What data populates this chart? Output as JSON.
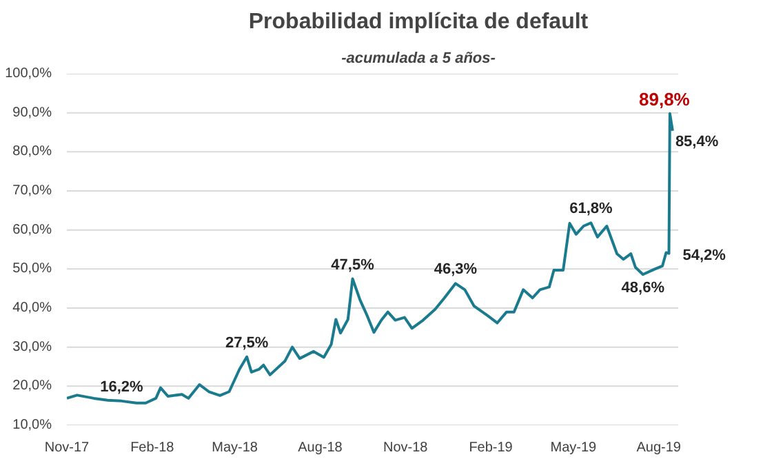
{
  "chart_data": {
    "type": "line",
    "title": "Probabilidad implícita de default",
    "subtitle": "-acumulada a 5 años-",
    "x": [
      "2017-11-01",
      "2017-11-12",
      "2017-11-30",
      "2017-12-15",
      "2017-12-30",
      "2018-01-15",
      "2018-01-25",
      "2018-02-05",
      "2018-02-10",
      "2018-02-18",
      "2018-03-05",
      "2018-03-12",
      "2018-03-24",
      "2018-04-03",
      "2018-04-15",
      "2018-04-25",
      "2018-05-06",
      "2018-05-14",
      "2018-05-19",
      "2018-05-27",
      "2018-06-01",
      "2018-06-08",
      "2018-06-24",
      "2018-07-02",
      "2018-07-10",
      "2018-07-25",
      "2018-08-05",
      "2018-08-13",
      "2018-08-18",
      "2018-08-23",
      "2018-08-31",
      "2018-09-05",
      "2018-09-13",
      "2018-09-21",
      "2018-09-28",
      "2018-10-06",
      "2018-10-13",
      "2018-10-21",
      "2018-10-31",
      "2018-11-08",
      "2018-11-20",
      "2018-12-03",
      "2018-12-13",
      "2018-12-25",
      "2019-01-04",
      "2019-01-14",
      "2019-01-29",
      "2019-02-08",
      "2019-02-18",
      "2019-02-26",
      "2019-03-08",
      "2019-03-18",
      "2019-03-26",
      "2019-04-05",
      "2019-04-10",
      "2019-04-20",
      "2019-04-27",
      "2019-05-04",
      "2019-05-12",
      "2019-05-20",
      "2019-05-27",
      "2019-06-06",
      "2019-06-17",
      "2019-06-24",
      "2019-07-02",
      "2019-07-07",
      "2019-07-15",
      "2019-07-27",
      "2019-08-05",
      "2019-08-09",
      "2019-08-12",
      "2019-08-13",
      "2019-08-16"
    ],
    "series": [
      {
        "color": "#1b7b8e",
        "values": [
          16.9,
          17.7,
          16.9,
          16.4,
          16.2,
          15.7,
          15.7,
          16.9,
          19.6,
          17.4,
          17.9,
          16.9,
          20.4,
          18.6,
          17.6,
          18.6,
          24.3,
          27.5,
          23.6,
          24.3,
          25.4,
          22.9,
          26.4,
          30.0,
          27.1,
          28.9,
          27.4,
          30.7,
          37.1,
          33.6,
          37.1,
          47.5,
          42.1,
          37.9,
          33.8,
          36.9,
          39.0,
          36.9,
          37.6,
          34.8,
          36.9,
          39.7,
          42.6,
          46.3,
          44.7,
          40.5,
          38.0,
          36.2,
          39.0,
          39.0,
          44.7,
          42.6,
          44.7,
          45.4,
          49.7,
          49.7,
          61.7,
          58.9,
          61.0,
          61.8,
          58.2,
          61.0,
          53.9,
          52.5,
          53.9,
          50.4,
          48.6,
          49.9,
          50.8,
          54.2,
          54.0,
          89.8,
          85.4
        ]
      }
    ],
    "xlim": [
      "2017-11-01",
      "2019-08-22"
    ],
    "xticks": [
      {
        "value": "2017-11-01",
        "label": "Nov-17"
      },
      {
        "value": "2018-02-01",
        "label": "Feb-18"
      },
      {
        "value": "2018-05-01",
        "label": "May-18"
      },
      {
        "value": "2018-08-01",
        "label": "Aug-18"
      },
      {
        "value": "2018-11-01",
        "label": "Nov-18"
      },
      {
        "value": "2019-02-01",
        "label": "Feb-19"
      },
      {
        "value": "2019-05-01",
        "label": "May-19"
      },
      {
        "value": "2019-08-01",
        "label": "Aug-19"
      }
    ],
    "ylim": [
      10,
      100
    ],
    "yticks": [
      {
        "value": 10,
        "label": "10,0%"
      },
      {
        "value": 20,
        "label": "20,0%"
      },
      {
        "value": 30,
        "label": "30,0%"
      },
      {
        "value": 40,
        "label": "40,0%"
      },
      {
        "value": 50,
        "label": "50,0%"
      },
      {
        "value": 60,
        "label": "60,0%"
      },
      {
        "value": 70,
        "label": "70,0%"
      },
      {
        "value": 80,
        "label": "80,0%"
      },
      {
        "value": 90,
        "label": "90,0%"
      },
      {
        "value": 100,
        "label": "100,0%"
      }
    ],
    "grid": "y",
    "marker": "none",
    "line_style": "solid",
    "annotations": [
      {
        "text": "16,2%",
        "x": "2017-12-30",
        "y": 16.2
      },
      {
        "text": "27,5%",
        "x": "2018-05-14",
        "y": 27.5
      },
      {
        "text": "47,5%",
        "x": "2018-09-05",
        "y": 47.5
      },
      {
        "text": "46,3%",
        "x": "2018-12-25",
        "y": 46.3
      },
      {
        "text": "61,8%",
        "x": "2019-05-20",
        "y": 61.8
      },
      {
        "text": "48,6%",
        "x": "2019-07-15",
        "y": 48.6
      },
      {
        "text": "54,2%",
        "x": "2019-08-09",
        "y": 54.2
      },
      {
        "text": "89,8%",
        "x": "2019-08-13",
        "y": 89.8
      },
      {
        "text": "85,4%",
        "x": "2019-08-16",
        "y": 85.4
      }
    ]
  }
}
